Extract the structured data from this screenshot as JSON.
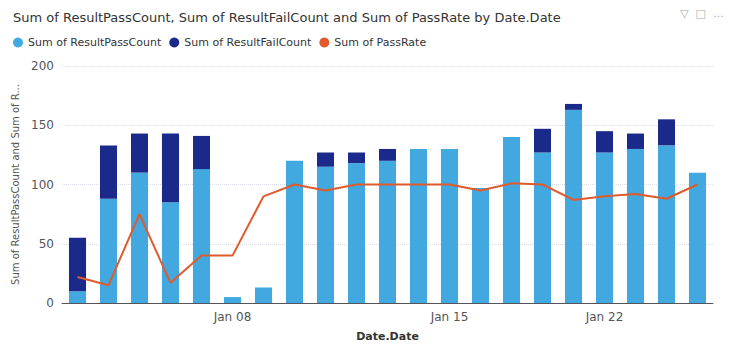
{
  "chart_data": {
    "type": "bar",
    "title": "Sum of ResultPassCount, Sum of ResultFailCount and Sum of PassRate by Date.Date",
    "x_label": "Date.Date",
    "y_label": "Sum of ResultPassCount and Sum of R...",
    "annotations": [
      "▽  □  …"
    ],
    "categories": [
      null,
      null,
      null,
      null,
      null,
      "Jan 08",
      null,
      null,
      null,
      null,
      null,
      null,
      "Jan 15",
      null,
      null,
      null,
      null,
      "Jan 22",
      null,
      null,
      null
    ],
    "series": [
      {
        "name": "Sum of ResultPassCount",
        "type": "bar",
        "color": "#41A8E0",
        "values": [
          10,
          88,
          110,
          85,
          113,
          5,
          13,
          120,
          115,
          118,
          120,
          130,
          130,
          97,
          140,
          127,
          163,
          127,
          130,
          133,
          110
        ]
      },
      {
        "name": "Sum of ResultFailCount",
        "type": "bar",
        "color": "#1B2A8A",
        "values": [
          45,
          45,
          33,
          58,
          28,
          0,
          0,
          0,
          12,
          9,
          10,
          0,
          0,
          0,
          0,
          20,
          5,
          18,
          13,
          22,
          0
        ]
      },
      {
        "name": "Sum of PassRate",
        "type": "line",
        "axis": "y2",
        "color": "#E05A2B",
        "values": [
          22,
          15,
          75,
          17,
          40,
          40,
          90,
          100,
          95,
          100,
          100,
          100,
          100,
          95,
          101,
          100,
          87,
          90,
          92,
          88,
          100
        ]
      }
    ],
    "stacked": true,
    "ylim": [
      0,
      200
    ],
    "yticks": [
      0,
      50,
      100,
      150,
      200
    ],
    "y2lim": [
      0,
      200
    ],
    "tick_labels": "y",
    "grid": true,
    "legend": "top"
  }
}
